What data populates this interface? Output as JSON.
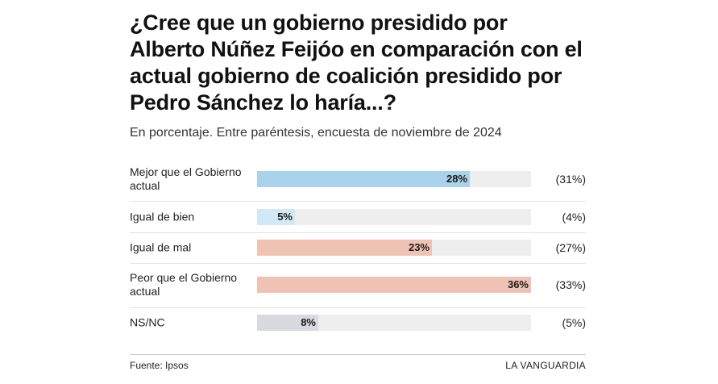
{
  "header": {
    "title": "¿Cree que un gobierno presidido por Alberto Núñez Feijóo en comparación con el actual gobierno de coalición presidido por Pedro Sánchez lo haría...?",
    "subtitle": "En porcentaje. Entre paréntesis, encuesta de noviembre de 2024"
  },
  "chart_data": {
    "type": "bar",
    "orientation": "horizontal",
    "xlim": [
      0,
      36
    ],
    "categories": [
      "Mejor que el Gobierno actual",
      "Igual de bien",
      "Igual de mal",
      "Peor que el Gobierno actual",
      "NS/NC"
    ],
    "values": [
      28,
      5,
      23,
      36,
      8
    ],
    "value_labels": [
      "28%",
      "5%",
      "23%",
      "36%",
      "8%"
    ],
    "previous_labels": [
      "(31%)",
      "(4%)",
      "(27%)",
      "(33%)",
      "(5%)"
    ],
    "previous_values": [
      31,
      4,
      27,
      33,
      5
    ],
    "colors": [
      "#a9d3ea",
      "#d2e9f5",
      "#f0c2b4",
      "#f0c2b4",
      "#d9d9e0"
    ],
    "track_color": "#eeeeee"
  },
  "footer": {
    "source": "Fuente: Ipsos",
    "brand": "LA VANGUARDIA"
  }
}
